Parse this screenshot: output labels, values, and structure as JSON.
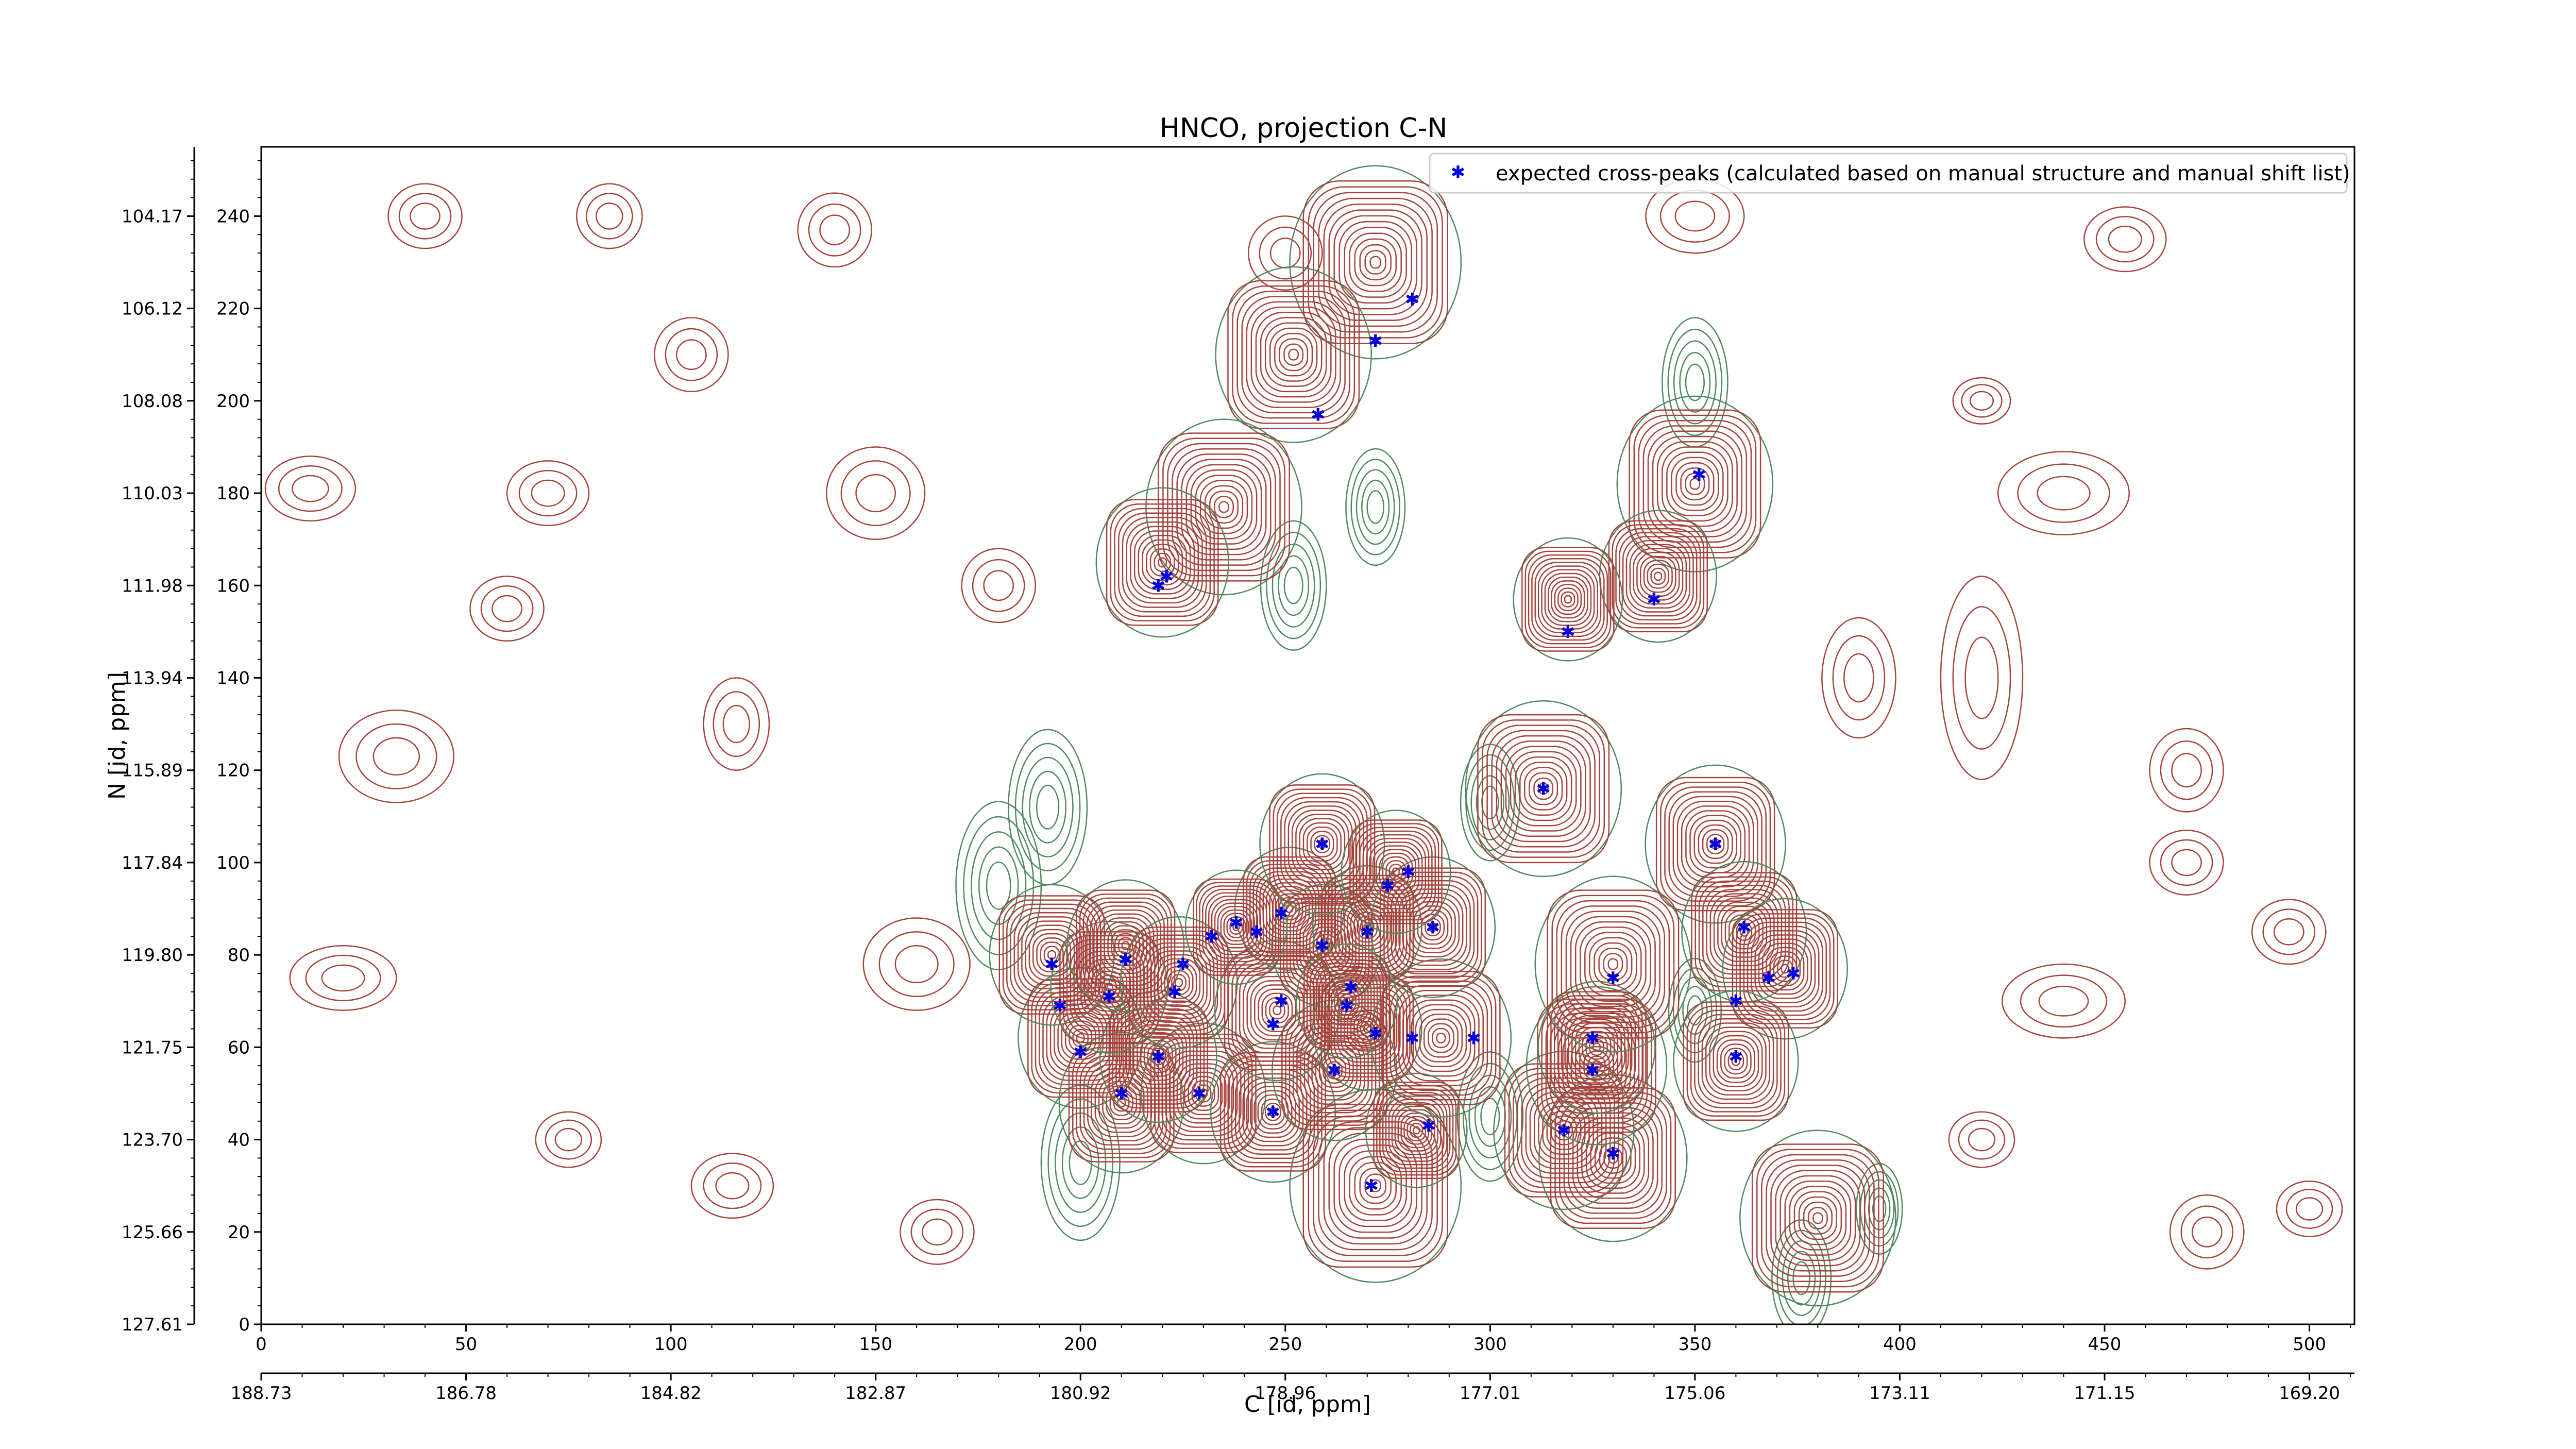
{
  "chart_data": {
    "type": "contour",
    "title": "HNCO, projection C-N",
    "xlabel": "C [id, ppm]",
    "ylabel": "N [id, ppm]",
    "xlim": [
      0,
      511
    ],
    "ylim": [
      0,
      255
    ],
    "x_index_ticks": [
      "0",
      "50",
      "100",
      "150",
      "200",
      "250",
      "300",
      "350",
      "400",
      "450",
      "500"
    ],
    "y_index_ticks": [
      "0",
      "20",
      "40",
      "60",
      "80",
      "100",
      "120",
      "140",
      "160",
      "180",
      "200",
      "220",
      "240"
    ],
    "x_ppm_ticks": [
      "188.73",
      "186.78",
      "184.82",
      "182.87",
      "180.92",
      "178.96",
      "177.01",
      "175.06",
      "173.11",
      "171.15",
      "169.20"
    ],
    "y_ppm_ticks": [
      "127.61",
      "125.66",
      "123.70",
      "121.75",
      "119.80",
      "117.84",
      "115.89",
      "113.94",
      "111.98",
      "110.03",
      "108.08",
      "106.12",
      "104.17"
    ],
    "legend": {
      "placement": "top-right",
      "label": "expected cross-peaks (calculated based on manual structure and manual shift list)",
      "marker_color": "#0000dd"
    },
    "colors": {
      "positive_contours": "#a5443d",
      "negative_contours": "#4f8a5e",
      "markers": "#0000dd"
    },
    "strong_peaks": [
      {
        "x": 272,
        "y": 230,
        "s": 22
      },
      {
        "x": 252,
        "y": 210,
        "s": 20
      },
      {
        "x": 235,
        "y": 177,
        "s": 20
      },
      {
        "x": 220,
        "y": 165,
        "s": 17
      },
      {
        "x": 350,
        "y": 182,
        "s": 20
      },
      {
        "x": 341,
        "y": 162,
        "s": 15
      },
      {
        "x": 319,
        "y": 157,
        "s": 14
      },
      {
        "x": 313,
        "y": 116,
        "s": 20
      },
      {
        "x": 355,
        "y": 104,
        "s": 18
      },
      {
        "x": 380,
        "y": 23,
        "s": 20
      },
      {
        "x": 272,
        "y": 30,
        "s": 22
      },
      {
        "x": 282,
        "y": 42,
        "s": 13
      },
      {
        "x": 330,
        "y": 36,
        "s": 19
      },
      {
        "x": 318,
        "y": 42,
        "s": 18
      },
      {
        "x": 326,
        "y": 56,
        "s": 18
      },
      {
        "x": 326,
        "y": 60,
        "s": 15
      },
      {
        "x": 330,
        "y": 78,
        "s": 20
      },
      {
        "x": 362,
        "y": 85,
        "s": 16
      },
      {
        "x": 372,
        "y": 77,
        "s": 16
      },
      {
        "x": 360,
        "y": 57,
        "s": 16
      },
      {
        "x": 200,
        "y": 62,
        "s": 16
      },
      {
        "x": 210,
        "y": 48,
        "s": 16
      },
      {
        "x": 230,
        "y": 50,
        "s": 16
      },
      {
        "x": 247,
        "y": 46,
        "s": 16
      },
      {
        "x": 219,
        "y": 58,
        "s": 15
      },
      {
        "x": 262,
        "y": 55,
        "s": 16
      },
      {
        "x": 193,
        "y": 80,
        "s": 16
      },
      {
        "x": 207,
        "y": 73,
        "s": 15
      },
      {
        "x": 211,
        "y": 82,
        "s": 15
      },
      {
        "x": 224,
        "y": 74,
        "s": 15
      },
      {
        "x": 248,
        "y": 68,
        "s": 16
      },
      {
        "x": 270,
        "y": 64,
        "s": 14
      },
      {
        "x": 288,
        "y": 62,
        "s": 18
      },
      {
        "x": 251,
        "y": 90,
        "s": 14
      },
      {
        "x": 260,
        "y": 82,
        "s": 14
      },
      {
        "x": 270,
        "y": 86,
        "s": 14
      },
      {
        "x": 286,
        "y": 86,
        "s": 16
      },
      {
        "x": 259,
        "y": 104,
        "s": 16
      },
      {
        "x": 277,
        "y": 98,
        "s": 14
      },
      {
        "x": 238,
        "y": 86,
        "s": 13
      },
      {
        "x": 265,
        "y": 70,
        "s": 13
      }
    ],
    "negative_peaks": [
      {
        "x": 192,
        "y": 112,
        "s": 12
      },
      {
        "x": 180,
        "y": 95,
        "s": 13
      },
      {
        "x": 200,
        "y": 35,
        "s": 12
      },
      {
        "x": 252,
        "y": 160,
        "s": 10
      },
      {
        "x": 272,
        "y": 177,
        "s": 9
      },
      {
        "x": 350,
        "y": 204,
        "s": 10
      },
      {
        "x": 376,
        "y": 10,
        "s": 9
      },
      {
        "x": 395,
        "y": 25,
        "s": 7
      },
      {
        "x": 300,
        "y": 45,
        "s": 10
      },
      {
        "x": 300,
        "y": 113,
        "s": 9
      },
      {
        "x": 350,
        "y": 68,
        "s": 8
      }
    ],
    "weak_blobs": [
      {
        "x": 12,
        "y": 181,
        "rx": 11,
        "ry": 7
      },
      {
        "x": 33,
        "y": 123,
        "rx": 14,
        "ry": 10
      },
      {
        "x": 20,
        "y": 75,
        "rx": 13,
        "ry": 7
      },
      {
        "x": 150,
        "y": 180,
        "rx": 12,
        "ry": 10
      },
      {
        "x": 160,
        "y": 78,
        "rx": 13,
        "ry": 10
      },
      {
        "x": 40,
        "y": 240,
        "rx": 9,
        "ry": 7
      },
      {
        "x": 85,
        "y": 240,
        "rx": 8,
        "ry": 7
      },
      {
        "x": 60,
        "y": 155,
        "rx": 9,
        "ry": 7
      },
      {
        "x": 420,
        "y": 200,
        "rx": 7,
        "ry": 5
      },
      {
        "x": 440,
        "y": 180,
        "rx": 16,
        "ry": 9
      },
      {
        "x": 470,
        "y": 120,
        "rx": 9,
        "ry": 9
      },
      {
        "x": 470,
        "y": 100,
        "rx": 9,
        "ry": 7
      },
      {
        "x": 440,
        "y": 70,
        "rx": 15,
        "ry": 8
      },
      {
        "x": 495,
        "y": 85,
        "rx": 9,
        "ry": 7
      },
      {
        "x": 420,
        "y": 140,
        "rx": 10,
        "ry": 22
      },
      {
        "x": 116,
        "y": 130,
        "rx": 8,
        "ry": 10
      },
      {
        "x": 75,
        "y": 40,
        "rx": 8,
        "ry": 6
      },
      {
        "x": 115,
        "y": 30,
        "rx": 10,
        "ry": 7
      },
      {
        "x": 165,
        "y": 20,
        "rx": 9,
        "ry": 7
      },
      {
        "x": 105,
        "y": 210,
        "rx": 9,
        "ry": 8
      },
      {
        "x": 140,
        "y": 237,
        "rx": 9,
        "ry": 8
      },
      {
        "x": 420,
        "y": 40,
        "rx": 8,
        "ry": 6
      },
      {
        "x": 475,
        "y": 20,
        "rx": 9,
        "ry": 8
      },
      {
        "x": 455,
        "y": 235,
        "rx": 10,
        "ry": 7
      },
      {
        "x": 350,
        "y": 240,
        "rx": 12,
        "ry": 8
      },
      {
        "x": 390,
        "y": 140,
        "rx": 9,
        "ry": 13
      },
      {
        "x": 250,
        "y": 232,
        "rx": 9,
        "ry": 8
      },
      {
        "x": 500,
        "y": 25,
        "rx": 8,
        "ry": 6
      },
      {
        "x": 70,
        "y": 180,
        "rx": 10,
        "ry": 7
      },
      {
        "x": 180,
        "y": 160,
        "rx": 9,
        "ry": 8
      }
    ],
    "series": [
      {
        "name": "expected cross-peaks (calculated based on manual structure and manual shift list)",
        "points": [
          {
            "x": 281,
            "y": 222
          },
          {
            "x": 272,
            "y": 213
          },
          {
            "x": 258,
            "y": 197
          },
          {
            "x": 221,
            "y": 162
          },
          {
            "x": 219,
            "y": 160
          },
          {
            "x": 351,
            "y": 184
          },
          {
            "x": 340,
            "y": 157
          },
          {
            "x": 319,
            "y": 150
          },
          {
            "x": 313,
            "y": 116
          },
          {
            "x": 355,
            "y": 104
          },
          {
            "x": 259,
            "y": 104
          },
          {
            "x": 280,
            "y": 98
          },
          {
            "x": 275,
            "y": 95
          },
          {
            "x": 249,
            "y": 89
          },
          {
            "x": 238,
            "y": 87
          },
          {
            "x": 232,
            "y": 84
          },
          {
            "x": 243,
            "y": 85
          },
          {
            "x": 259,
            "y": 82
          },
          {
            "x": 270,
            "y": 85
          },
          {
            "x": 286,
            "y": 86
          },
          {
            "x": 362,
            "y": 86
          },
          {
            "x": 193,
            "y": 78
          },
          {
            "x": 211,
            "y": 79
          },
          {
            "x": 225,
            "y": 78
          },
          {
            "x": 330,
            "y": 75
          },
          {
            "x": 374,
            "y": 76
          },
          {
            "x": 368,
            "y": 75
          },
          {
            "x": 223,
            "y": 72
          },
          {
            "x": 207,
            "y": 71
          },
          {
            "x": 195,
            "y": 69
          },
          {
            "x": 249,
            "y": 70
          },
          {
            "x": 266,
            "y": 73
          },
          {
            "x": 265,
            "y": 69
          },
          {
            "x": 360,
            "y": 70
          },
          {
            "x": 247,
            "y": 65
          },
          {
            "x": 272,
            "y": 63
          },
          {
            "x": 281,
            "y": 62
          },
          {
            "x": 296,
            "y": 62
          },
          {
            "x": 325,
            "y": 62
          },
          {
            "x": 200,
            "y": 59
          },
          {
            "x": 219,
            "y": 58
          },
          {
            "x": 360,
            "y": 58
          },
          {
            "x": 262,
            "y": 55
          },
          {
            "x": 325,
            "y": 55
          },
          {
            "x": 210,
            "y": 50
          },
          {
            "x": 229,
            "y": 50
          },
          {
            "x": 247,
            "y": 46
          },
          {
            "x": 285,
            "y": 43
          },
          {
            "x": 318,
            "y": 42
          },
          {
            "x": 330,
            "y": 37
          },
          {
            "x": 271,
            "y": 30
          }
        ]
      }
    ]
  }
}
